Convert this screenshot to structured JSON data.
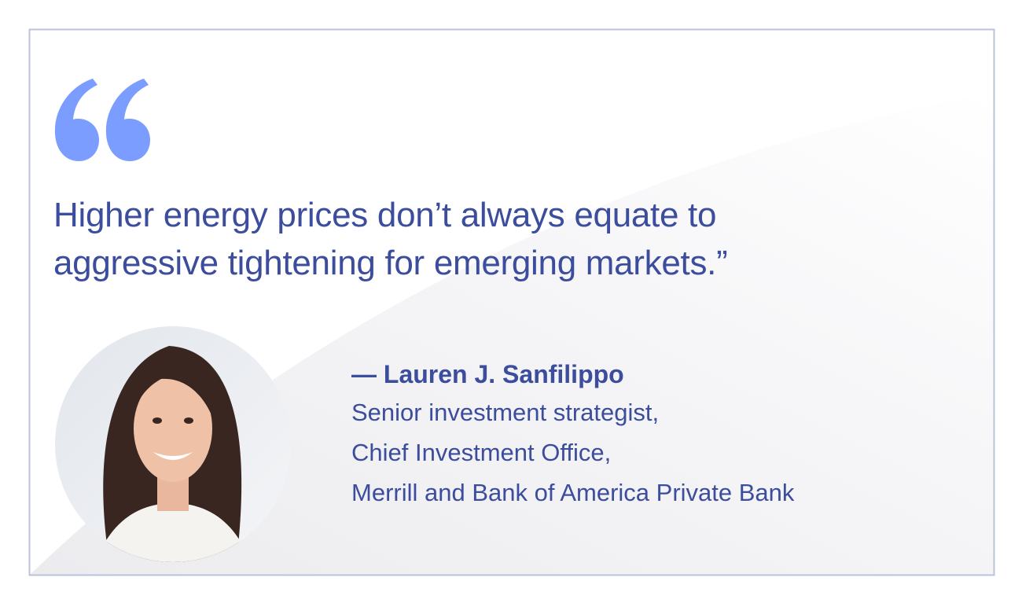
{
  "quote": {
    "lines": [
      "Higher energy prices don’t always equate to",
      "aggressive tightening for emerging markets.”"
    ]
  },
  "attribution": {
    "name": "— Lauren J. Sanfilippo",
    "title_lines": [
      "Senior investment strategist,",
      "Chief Investment Office,",
      "Merrill and Bank of America Private Bank"
    ]
  }
}
